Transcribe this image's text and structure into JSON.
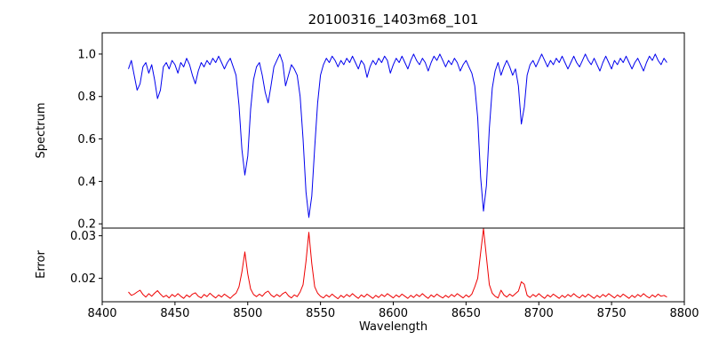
{
  "chart_data": {
    "type": "line",
    "title": "20100316_1403m68_101",
    "xlabel": "Wavelength",
    "xlim": [
      8400,
      8800
    ],
    "xticks": [
      8400,
      8450,
      8500,
      8550,
      8600,
      8650,
      8700,
      8750,
      8800
    ],
    "xtick_labels": [
      "8400",
      "8450",
      "8500",
      "8550",
      "8600",
      "8650",
      "8700",
      "8750",
      "8800"
    ],
    "grid": false,
    "legend": "none",
    "x": [
      8418,
      8420,
      8422,
      8424,
      8426,
      8428,
      8430,
      8432,
      8434,
      8436,
      8438,
      8440,
      8442,
      8444,
      8446,
      8448,
      8450,
      8452,
      8454,
      8456,
      8458,
      8460,
      8462,
      8464,
      8466,
      8468,
      8470,
      8472,
      8474,
      8476,
      8478,
      8480,
      8482,
      8484,
      8486,
      8488,
      8490,
      8492,
      8494,
      8496,
      8498,
      8500,
      8502,
      8504,
      8506,
      8508,
      8510,
      8512,
      8514,
      8516,
      8518,
      8520,
      8522,
      8524,
      8526,
      8528,
      8530,
      8532,
      8534,
      8536,
      8538,
      8540,
      8542,
      8544,
      8546,
      8548,
      8550,
      8552,
      8554,
      8556,
      8558,
      8560,
      8562,
      8564,
      8566,
      8568,
      8570,
      8572,
      8574,
      8576,
      8578,
      8580,
      8582,
      8584,
      8586,
      8588,
      8590,
      8592,
      8594,
      8596,
      8598,
      8600,
      8602,
      8604,
      8606,
      8608,
      8610,
      8612,
      8614,
      8616,
      8618,
      8620,
      8622,
      8624,
      8626,
      8628,
      8630,
      8632,
      8634,
      8636,
      8638,
      8640,
      8642,
      8644,
      8646,
      8648,
      8650,
      8652,
      8654,
      8656,
      8658,
      8660,
      8662,
      8664,
      8666,
      8668,
      8670,
      8672,
      8674,
      8676,
      8678,
      8680,
      8682,
      8684,
      8686,
      8688,
      8690,
      8692,
      8694,
      8696,
      8698,
      8700,
      8702,
      8704,
      8706,
      8708,
      8710,
      8712,
      8714,
      8716,
      8718,
      8720,
      8722,
      8724,
      8726,
      8728,
      8730,
      8732,
      8734,
      8736,
      8738,
      8740,
      8742,
      8744,
      8746,
      8748,
      8750,
      8752,
      8754,
      8756,
      8758,
      8760,
      8762,
      8764,
      8766,
      8768,
      8770,
      8772,
      8774,
      8776,
      8778,
      8780,
      8782,
      8784,
      8786,
      8788
    ],
    "panels": [
      {
        "name": "spectrum",
        "ylabel": "Spectrum",
        "color": "#0000ee",
        "ylim": [
          0.18,
          1.1
        ],
        "yticks": [
          0.2,
          0.4,
          0.6,
          0.8,
          1.0
        ],
        "ytick_labels": [
          "0.2",
          "0.4",
          "0.6",
          "0.8",
          "1.0"
        ],
        "absorption_line_centers": [
          8498,
          8542,
          8662
        ],
        "values": [
          0.93,
          0.97,
          0.9,
          0.83,
          0.86,
          0.94,
          0.96,
          0.91,
          0.95,
          0.88,
          0.79,
          0.83,
          0.94,
          0.96,
          0.93,
          0.97,
          0.95,
          0.91,
          0.96,
          0.94,
          0.98,
          0.95,
          0.9,
          0.86,
          0.92,
          0.96,
          0.94,
          0.97,
          0.95,
          0.98,
          0.96,
          0.99,
          0.96,
          0.93,
          0.96,
          0.98,
          0.94,
          0.9,
          0.76,
          0.55,
          0.43,
          0.52,
          0.74,
          0.88,
          0.94,
          0.96,
          0.9,
          0.82,
          0.77,
          0.85,
          0.94,
          0.97,
          1.0,
          0.96,
          0.85,
          0.9,
          0.95,
          0.93,
          0.9,
          0.8,
          0.6,
          0.35,
          0.23,
          0.33,
          0.56,
          0.77,
          0.9,
          0.95,
          0.98,
          0.96,
          0.99,
          0.97,
          0.94,
          0.97,
          0.95,
          0.98,
          0.96,
          0.99,
          0.96,
          0.93,
          0.97,
          0.95,
          0.89,
          0.94,
          0.97,
          0.95,
          0.98,
          0.96,
          0.99,
          0.97,
          0.91,
          0.95,
          0.98,
          0.96,
          0.99,
          0.96,
          0.93,
          0.97,
          1.0,
          0.97,
          0.95,
          0.98,
          0.96,
          0.92,
          0.96,
          0.99,
          0.97,
          1.0,
          0.97,
          0.94,
          0.97,
          0.95,
          0.98,
          0.96,
          0.92,
          0.95,
          0.97,
          0.94,
          0.91,
          0.85,
          0.7,
          0.42,
          0.26,
          0.38,
          0.65,
          0.84,
          0.92,
          0.96,
          0.9,
          0.94,
          0.97,
          0.94,
          0.9,
          0.93,
          0.85,
          0.67,
          0.75,
          0.9,
          0.95,
          0.97,
          0.94,
          0.97,
          1.0,
          0.97,
          0.94,
          0.97,
          0.95,
          0.98,
          0.96,
          0.99,
          0.96,
          0.93,
          0.96,
          0.99,
          0.96,
          0.94,
          0.97,
          1.0,
          0.97,
          0.95,
          0.98,
          0.95,
          0.92,
          0.96,
          0.99,
          0.96,
          0.93,
          0.97,
          0.95,
          0.98,
          0.96,
          0.99,
          0.96,
          0.93,
          0.96,
          0.98,
          0.95,
          0.92,
          0.96,
          0.99,
          0.97,
          1.0,
          0.97,
          0.95,
          0.98,
          0.96
        ]
      },
      {
        "name": "error",
        "ylabel": "Error",
        "color": "#ee0000",
        "ylim": [
          0.0145,
          0.0318
        ],
        "yticks": [
          0.02,
          0.03
        ],
        "ytick_labels": [
          "0.02",
          "0.03"
        ],
        "values": [
          0.0168,
          0.016,
          0.0163,
          0.0168,
          0.0172,
          0.0162,
          0.0156,
          0.0164,
          0.0158,
          0.0165,
          0.0171,
          0.0163,
          0.0156,
          0.016,
          0.0154,
          0.0162,
          0.0157,
          0.0164,
          0.0158,
          0.0153,
          0.0161,
          0.0156,
          0.0163,
          0.0166,
          0.0158,
          0.0154,
          0.0162,
          0.0157,
          0.0165,
          0.0159,
          0.0154,
          0.0161,
          0.0156,
          0.0163,
          0.0158,
          0.0153,
          0.016,
          0.0165,
          0.018,
          0.0215,
          0.0262,
          0.021,
          0.0175,
          0.0162,
          0.0157,
          0.0163,
          0.0158,
          0.0166,
          0.017,
          0.0161,
          0.0156,
          0.0162,
          0.0157,
          0.0164,
          0.0168,
          0.0159,
          0.0154,
          0.0161,
          0.0157,
          0.0168,
          0.0185,
          0.024,
          0.0308,
          0.0235,
          0.018,
          0.0165,
          0.0158,
          0.0154,
          0.0161,
          0.0156,
          0.0163,
          0.0157,
          0.0152,
          0.016,
          0.0155,
          0.0162,
          0.0157,
          0.0164,
          0.0158,
          0.0153,
          0.0161,
          0.0156,
          0.0163,
          0.0158,
          0.0153,
          0.016,
          0.0155,
          0.0162,
          0.0157,
          0.0164,
          0.0159,
          0.0154,
          0.0161,
          0.0156,
          0.0163,
          0.0158,
          0.0153,
          0.016,
          0.0155,
          0.0162,
          0.0157,
          0.0164,
          0.0158,
          0.0153,
          0.0161,
          0.0156,
          0.0163,
          0.0158,
          0.0154,
          0.016,
          0.0155,
          0.0162,
          0.0157,
          0.0164,
          0.0159,
          0.0154,
          0.0161,
          0.0156,
          0.0163,
          0.018,
          0.02,
          0.026,
          0.032,
          0.025,
          0.0185,
          0.0165,
          0.0158,
          0.0154,
          0.0172,
          0.0161,
          0.0156,
          0.0163,
          0.0158,
          0.0164,
          0.017,
          0.0192,
          0.0186,
          0.016,
          0.0155,
          0.0162,
          0.0157,
          0.0164,
          0.0158,
          0.0153,
          0.0161,
          0.0156,
          0.0163,
          0.0158,
          0.0153,
          0.016,
          0.0155,
          0.0162,
          0.0157,
          0.0164,
          0.0158,
          0.0154,
          0.0161,
          0.0156,
          0.0163,
          0.0158,
          0.0153,
          0.016,
          0.0155,
          0.0162,
          0.0157,
          0.0164,
          0.0159,
          0.0154,
          0.0161,
          0.0156,
          0.0163,
          0.0158,
          0.0153,
          0.016,
          0.0155,
          0.0162,
          0.0157,
          0.0164,
          0.0158,
          0.0154,
          0.0161,
          0.0156,
          0.0163,
          0.0158,
          0.016,
          0.0156
        ]
      }
    ]
  }
}
